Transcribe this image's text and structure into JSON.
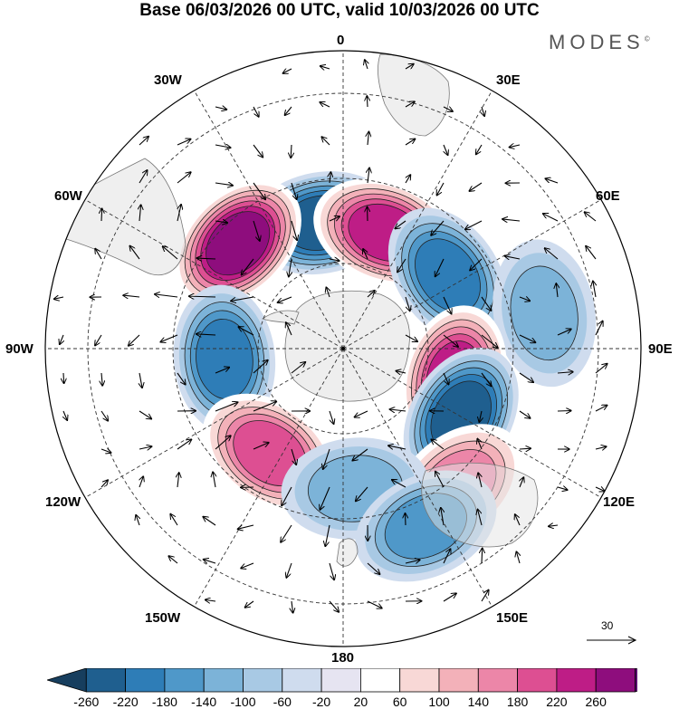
{
  "title": "Base 06/03/2026 00 UTC, valid 10/03/2026 00 UTC",
  "brand": {
    "name": "MODES",
    "mark": "©"
  },
  "map": {
    "projection": "south-polar-stereographic",
    "longitude_labels": {
      "top": "0",
      "top_left": "30W",
      "top_right": "30E",
      "upper_left": "60W",
      "upper_right": "60E",
      "left": "90W",
      "right": "90E",
      "lower_left": "120W",
      "lower_right": "120E",
      "bottom_left": "150W",
      "bottom_right": "150E",
      "bottom": "180"
    },
    "vector_reference": {
      "label": "30"
    },
    "anomalies": [
      {
        "lon": -10,
        "colat": 30,
        "value": -250
      },
      {
        "lon": 20,
        "colat": 29,
        "value": 240
      },
      {
        "lon": 55,
        "colat": 30,
        "value": -200
      },
      {
        "lon": 80,
        "colat": 48,
        "value": -140
      },
      {
        "lon": -45,
        "colat": 35,
        "value": 270
      },
      {
        "lon": -95,
        "colat": 28,
        "value": -220
      },
      {
        "lon": 105,
        "colat": 27,
        "value": 250
      },
      {
        "lon": 120,
        "colat": 32,
        "value": -230
      },
      {
        "lon": 140,
        "colat": 42,
        "value": 170
      },
      {
        "lon": -145,
        "colat": 30,
        "value": 220
      },
      {
        "lon": 175,
        "colat": 33,
        "value": -120
      },
      {
        "lon": 155,
        "colat": 46,
        "value": -180
      }
    ]
  },
  "colorbar": {
    "ticks": [
      "-260",
      "-220",
      "-180",
      "-140",
      "-100",
      "-60",
      "-20",
      "20",
      "60",
      "100",
      "140",
      "180",
      "220",
      "260"
    ],
    "colors": [
      "#173e5e",
      "#1f5f8f",
      "#2e7db7",
      "#4f98c9",
      "#7cb3d8",
      "#a8c9e4",
      "#cfdcee",
      "#e6e4f1",
      "#ffffff",
      "#f8d8d6",
      "#f3b1b9",
      "#ec86a8",
      "#dd4f92",
      "#be1d86",
      "#8e0d7d",
      "#5a0a6e"
    ]
  }
}
